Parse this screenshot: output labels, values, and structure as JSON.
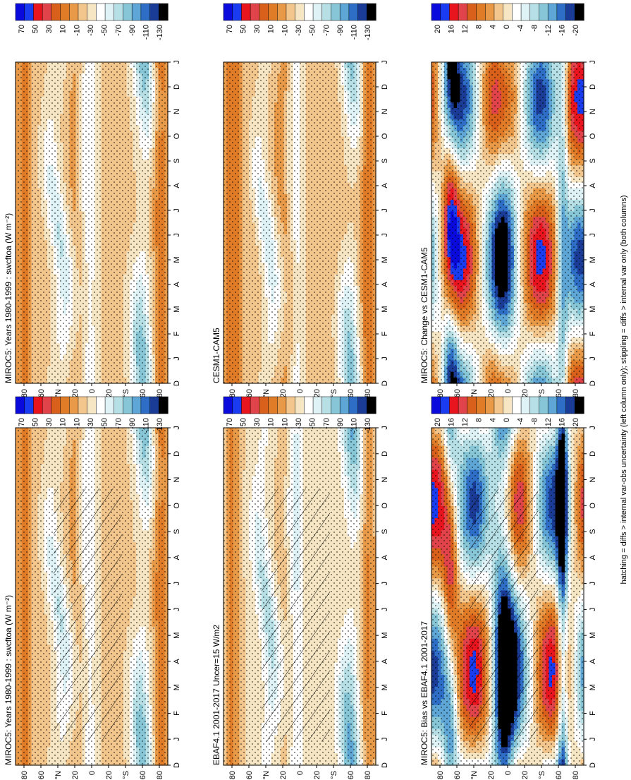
{
  "figure": {
    "footnote": "hatching = diffs > internal var-obs uncertainty (left column only); stippling = diffs > internal var only (both columns)",
    "units_suffix": "(W m⁻²)",
    "palette_main": [
      "#0a0adc",
      "#1a3cf0",
      "#e8141e",
      "#e0444a",
      "#d8601a",
      "#e07c28",
      "#e89a48",
      "#f2c68c",
      "#f6e6c4",
      "#ffffff",
      "#dff2f6",
      "#b6dfe6",
      "#86c6d6",
      "#5ea6d6",
      "#2e6ec6",
      "#1a3c96",
      "#000000"
    ],
    "palette_diff": [
      "#0a0adc",
      "#1a3cf0",
      "#e8141e",
      "#e0444a",
      "#d8601a",
      "#e07c28",
      "#e89a48",
      "#f2c68c",
      "#f6e6c4",
      "#ffffff",
      "#dff2f6",
      "#b6dfe6",
      "#86c6d6",
      "#5ea6d6",
      "#2e6ec6",
      "#1a3c96",
      "#000000"
    ]
  },
  "chart_data": [
    {
      "id": "p1",
      "type": "heatmap",
      "title": "MIROC5: Years 1980-1999 : swcftoa (W m⁻²)",
      "x_ticks": [
        "D",
        "J",
        "F",
        "M",
        "A",
        "M",
        "J",
        "J",
        "A",
        "S",
        "O",
        "N",
        "D",
        "J"
      ],
      "y_ticks": [
        "80",
        "60",
        "°N",
        "20",
        "0",
        "20",
        "°S",
        "60",
        "80"
      ],
      "colorbar_ticks": [
        "70",
        "50",
        "30",
        "10",
        "-10",
        "-30",
        "-50",
        "-70",
        "-90",
        "-110",
        "-130"
      ],
      "zlim": [
        -140,
        80
      ],
      "hatching": true,
      "stippling": true
    },
    {
      "id": "p2",
      "type": "heatmap",
      "title": "MIROC5: Years 1980-1999 : swcftoa (W m⁻²)",
      "x_ticks": [
        "D",
        "J",
        "F",
        "M",
        "A",
        "M",
        "J",
        "J",
        "A",
        "S",
        "O",
        "N",
        "D",
        "J"
      ],
      "y_ticks": [
        "80",
        "60",
        "°N",
        "20",
        "0",
        "20",
        "°S",
        "60",
        "80"
      ],
      "colorbar_ticks": [
        "70",
        "50",
        "30",
        "10",
        "-10",
        "-30",
        "-50",
        "-70",
        "-90",
        "-110",
        "-130"
      ],
      "zlim": [
        -140,
        80
      ],
      "hatching": false,
      "stippling": true
    },
    {
      "id": "p3",
      "type": "heatmap",
      "title": "EBAF4.1 2001-2017 Uncer=15 W/m2",
      "x_ticks": [
        "D",
        "J",
        "F",
        "M",
        "A",
        "M",
        "J",
        "J",
        "A",
        "S",
        "O",
        "N",
        "D",
        "J"
      ],
      "y_ticks": [
        "80",
        "60",
        "°N",
        "20",
        "0",
        "20",
        "°S",
        "60",
        "80"
      ],
      "colorbar_ticks": [
        "70",
        "50",
        "30",
        "10",
        "-10",
        "-30",
        "-50",
        "-70",
        "-90",
        "-110",
        "-130"
      ],
      "zlim": [
        -140,
        80
      ],
      "hatching": true,
      "stippling": true
    },
    {
      "id": "p4",
      "type": "heatmap",
      "title": "CESM1-CAM5",
      "x_ticks": [
        "D",
        "J",
        "F",
        "M",
        "A",
        "M",
        "J",
        "J",
        "A",
        "S",
        "O",
        "N",
        "D",
        "J"
      ],
      "y_ticks": [
        "80",
        "60",
        "°N",
        "20",
        "0",
        "20",
        "°S",
        "60",
        "80"
      ],
      "colorbar_ticks": [
        "70",
        "50",
        "30",
        "10",
        "-10",
        "-30",
        "-50",
        "-70",
        "-90",
        "-110",
        "-130"
      ],
      "zlim": [
        -140,
        80
      ],
      "hatching": false,
      "stippling": true
    },
    {
      "id": "p5",
      "type": "heatmap",
      "title": "MIROC5: Bias vs EBAF4.1 2001-2017",
      "x_ticks": [
        "D",
        "J",
        "F",
        "M",
        "A",
        "M",
        "J",
        "J",
        "A",
        "S",
        "O",
        "N",
        "D",
        "J"
      ],
      "y_ticks": [
        "80",
        "60",
        "°N",
        "20",
        "0",
        "20",
        "°S",
        "60",
        "80"
      ],
      "colorbar_ticks": [
        "20",
        "16",
        "12",
        "8",
        "4",
        "0",
        "-4",
        "-8",
        "-12",
        "-16",
        "-20"
      ],
      "zlim": [
        -22,
        22
      ],
      "hatching": true,
      "stippling": true
    },
    {
      "id": "p6",
      "type": "heatmap",
      "title": "MIROC5: Change vs CESM1-CAM5",
      "x_ticks": [
        "D",
        "J",
        "F",
        "M",
        "A",
        "M",
        "J",
        "J",
        "A",
        "S",
        "O",
        "N",
        "D",
        "J"
      ],
      "y_ticks": [
        "80",
        "60",
        "°N",
        "20",
        "0",
        "20",
        "°S",
        "60",
        "80"
      ],
      "colorbar_ticks": [
        "20",
        "16",
        "12",
        "8",
        "4",
        "0",
        "-4",
        "-8",
        "-12",
        "-16",
        "-20"
      ],
      "zlim": [
        -22,
        22
      ],
      "hatching": false,
      "stippling": true
    }
  ]
}
